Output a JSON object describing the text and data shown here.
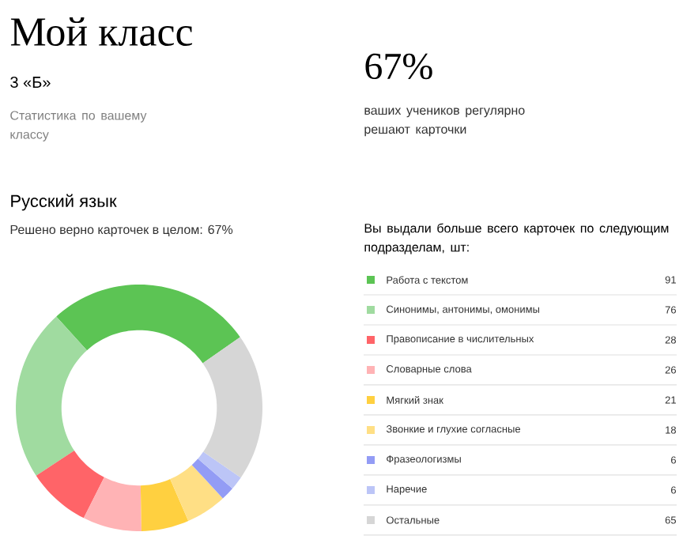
{
  "chart_data": {
    "type": "donut",
    "title": "Мой класс",
    "subtitle": "3 «Б»",
    "annotations": [
      "Статистика по вашему классу",
      "67%",
      "ваших учеников регулярно решают карточки",
      "Русский язык",
      "Решено верно карточек в целом: 67%"
    ],
    "legend_title": "Вы выдали больше всего карточек по следующим подразделам, шт:",
    "categories": [
      "Работа с текстом",
      "Синонимы, антонимы, омонимы",
      "Правописание в числительных",
      "Словарные слова",
      "Мягкий знак",
      "Звонкие и глухие согласные",
      "Фразеологизмы",
      "Наречие",
      "Остальные"
    ],
    "values": [
      91,
      76,
      28,
      26,
      21,
      18,
      6,
      6,
      65
    ],
    "colors": [
      "#5cc454",
      "#a0dba0",
      "#ff6468",
      "#ffb3b5",
      "#ffd040",
      "#ffdf85",
      "#939cf5",
      "#bcc5f7",
      "#d6d6d6"
    ],
    "data_labels": true,
    "legend": "right"
  }
}
